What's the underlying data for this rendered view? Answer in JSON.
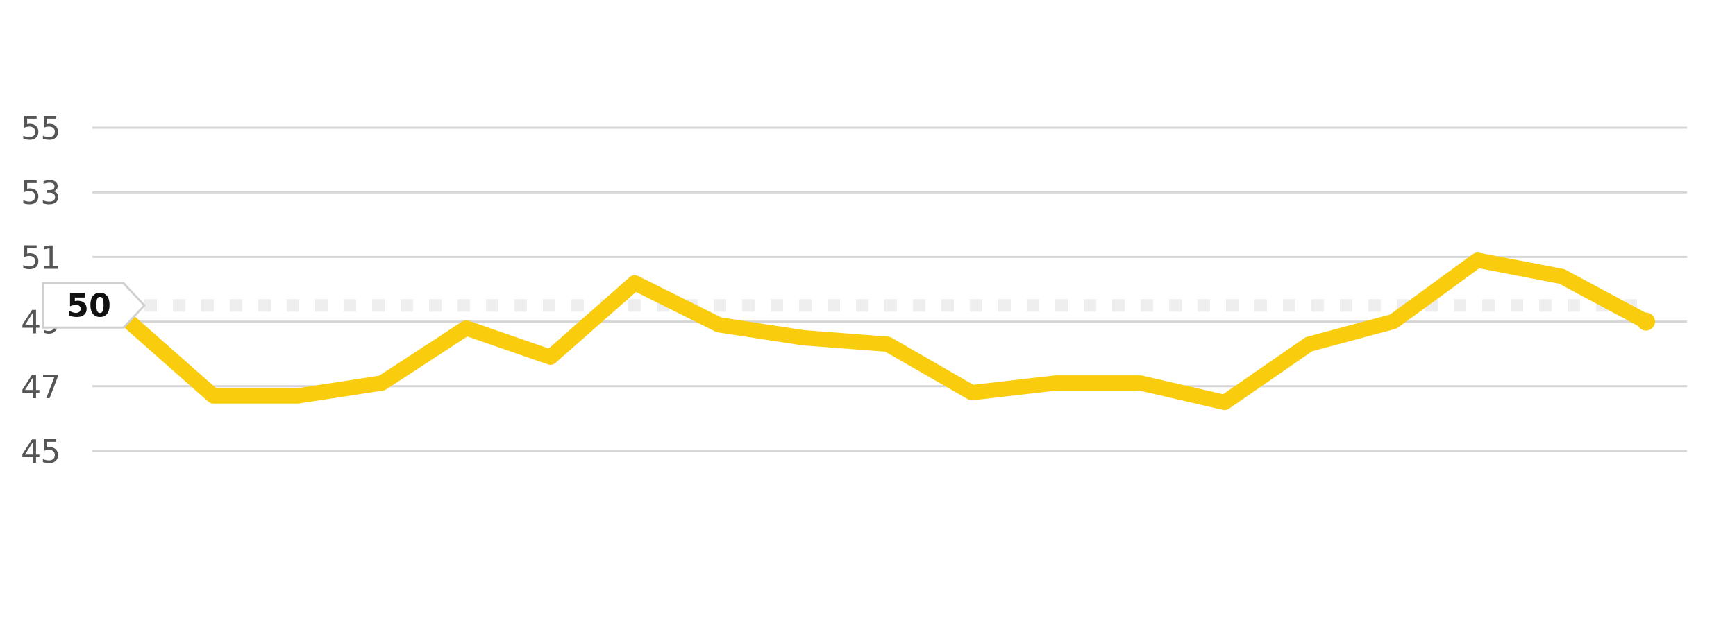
{
  "chart_data": {
    "type": "line",
    "title": "",
    "xlabel": "",
    "ylabel": "",
    "ylim": [
      45,
      55
    ],
    "yticks": [
      55,
      53,
      51,
      49,
      47,
      45
    ],
    "ytick_labels": [
      "55",
      "53",
      "51",
      "49",
      "47",
      "45"
    ],
    "grid": true,
    "x": [
      1,
      2,
      3,
      4,
      5,
      6,
      7,
      8,
      9,
      10,
      11,
      12,
      13,
      14,
      15,
      16,
      17,
      18,
      19
    ],
    "series": [
      {
        "values": [
          49.0,
          46.7,
          46.7,
          47.1,
          48.8,
          47.9,
          50.2,
          48.9,
          48.5,
          48.3,
          46.8,
          47.1,
          47.1,
          46.5,
          48.3,
          49.0,
          50.9,
          50.4,
          49.0
        ],
        "color": "#f9cc0d"
      }
    ],
    "reference_line": {
      "value": 49.5,
      "label": "50",
      "color": "#eeeeee"
    }
  }
}
